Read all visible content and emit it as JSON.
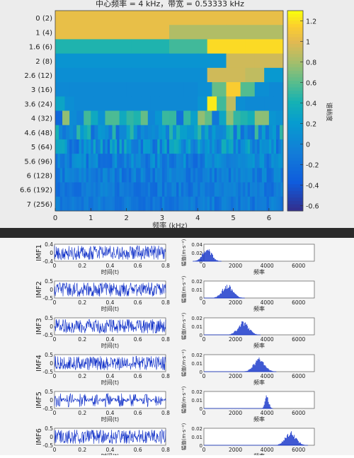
{
  "chart_data": [
    {
      "type": "heatmap",
      "title": "中心频率 = 4 kHz，带宽 = 0.53333 kHz",
      "xlabel": "频率 (kHz)",
      "ylabel": "",
      "xlim": [
        0,
        6.4
      ],
      "xticks": [
        0,
        1,
        2,
        3,
        4,
        5,
        6
      ],
      "y_categories": [
        "0 (2)",
        "1 (4)",
        "1.6 (6)",
        "2 (8)",
        "2.6 (12)",
        "3 (16)",
        "3.6 (24)",
        "4 (32)",
        "4.6 (48)",
        "5 (64)",
        "5.6 (96)",
        "6 (128)",
        "6.6 (192)",
        "7 (256)"
      ],
      "colorbar_label": "谱峭度",
      "colorbar_range": [
        -0.65,
        1.3
      ],
      "colorbar_ticks": [
        1.2,
        1,
        0.8,
        0.6,
        0.4,
        0.2,
        0,
        -0.2,
        -0.4,
        -0.6
      ],
      "cell_values": [
        [
          1.05
        ],
        [
          1.05,
          1.05,
          0.85,
          0.85
        ],
        [
          0.45,
          0.45,
          0.45,
          0.55,
          1.2,
          1.2
        ],
        [
          0.15,
          0.15,
          0.15,
          0.15,
          0.15,
          0.15,
          0.95,
          0.95
        ],
        [
          0.1,
          0.1,
          0.1,
          0.1,
          0.1,
          0.1,
          0.1,
          0.1,
          0.95,
          0.95,
          0.9,
          0.2
        ],
        [
          0.05,
          0.05,
          0.05,
          0.05,
          0.05,
          0.05,
          0.05,
          0.05,
          0.05,
          0.05,
          0.1,
          0.65,
          1.15,
          0.6,
          0.1,
          0.05
        ],
        [
          0.3,
          0.1,
          0.05,
          0.05,
          0.05,
          0.05,
          0.05,
          0.05,
          0.05,
          0.05,
          0.05,
          0.05,
          0.05,
          0.05,
          0.05,
          0.15,
          1.25,
          0.55,
          0.9,
          0.1,
          0.05,
          0.05,
          0.05,
          0.05
        ]
      ],
      "fine_rows_max": [
        0.85,
        0.55,
        0.4,
        0.2,
        0.1,
        0.05,
        0.05
      ]
    },
    {
      "type": "line",
      "panels": [
        {
          "label": "IMF1",
          "time_yticks": [
            0.4,
            0,
            -0.4
          ],
          "spectrum_peak_hz": 200,
          "spectrum_yticks": [
            0.04,
            0.02,
            0
          ]
        },
        {
          "label": "IMF2",
          "time_yticks": [
            0.5,
            0,
            -0.5
          ],
          "spectrum_peak_hz": 1500,
          "spectrum_yticks": [
            0.02,
            0.01,
            0
          ]
        },
        {
          "label": "IMF3",
          "time_yticks": [
            0.5,
            0,
            -0.5
          ],
          "spectrum_peak_hz": 2500,
          "spectrum_yticks": [
            0.02,
            0.01,
            0
          ]
        },
        {
          "label": "IMF4",
          "time_yticks": [
            0.5,
            0,
            -0.5
          ],
          "spectrum_peak_hz": 3500,
          "spectrum_yticks": [
            0.02,
            0.01,
            0
          ]
        },
        {
          "label": "IMF5",
          "time_yticks": [
            0.5,
            0,
            -0.5
          ],
          "spectrum_peak_hz": 4000,
          "spectrum_yticks": [
            0.02,
            0.01,
            0
          ]
        },
        {
          "label": "IMF6",
          "time_yticks": [
            0.5,
            0,
            -0.5
          ],
          "spectrum_peak_hz": 5500,
          "spectrum_yticks": [
            0.02,
            0.01,
            0
          ]
        }
      ],
      "time_xlabel": "时间(t)",
      "time_xticks": [
        0,
        0.2,
        0.4,
        0.6,
        0.8
      ],
      "spectrum_xlabel": "频率",
      "spectrum_ylabel": "幅值(m·s⁻²)",
      "spectrum_xticks": [
        0,
        2000,
        4000,
        6000
      ]
    }
  ]
}
